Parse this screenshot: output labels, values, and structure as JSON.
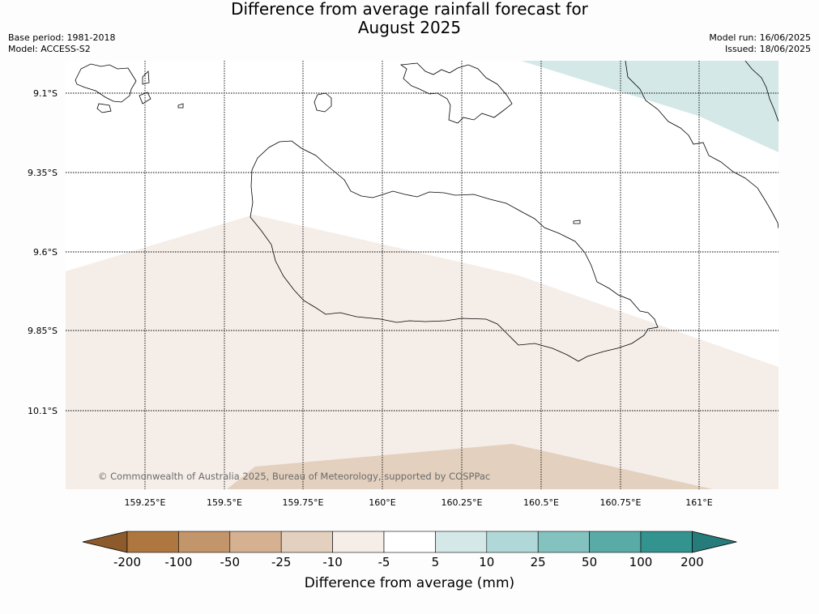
{
  "title": {
    "line1": "Difference from average rainfall forecast for",
    "line2": "August 2025"
  },
  "meta": {
    "base_period": "Base period: 1981-2018",
    "model": "Model: ACCESS-S2",
    "model_run": "Model run: 16/06/2025",
    "issued": "Issued: 18/06/2025"
  },
  "map": {
    "lon_ticks": [
      "159.25°E",
      "159.5°E",
      "159.75°E",
      "160°E",
      "160.25°E",
      "160.5°E",
      "160.75°E",
      "161°E"
    ],
    "lat_ticks": [
      "9.1°S",
      "9.35°S",
      "9.6°S",
      "9.85°S",
      "10.1°S"
    ],
    "copyright": "© Commonwealth of Australia 2025, Bureau of Meteorology, supported by COSPPac",
    "gridlines": "on"
  },
  "colorbar": {
    "label": "Difference from average (mm)",
    "ticks": [
      "-200",
      "-100",
      "-50",
      "-25",
      "-10",
      "-5",
      "5",
      "10",
      "25",
      "50",
      "100",
      "200"
    ],
    "colors": [
      "#8c5a2b",
      "#ae773f",
      "#c3956a",
      "#d5b191",
      "#e3d0be",
      "#f5ede8",
      "#ffffff",
      "#d4e8e8",
      "#b0d8d8",
      "#84c2c0",
      "#5aaba8",
      "#33938f",
      "#267c7a"
    ]
  }
}
